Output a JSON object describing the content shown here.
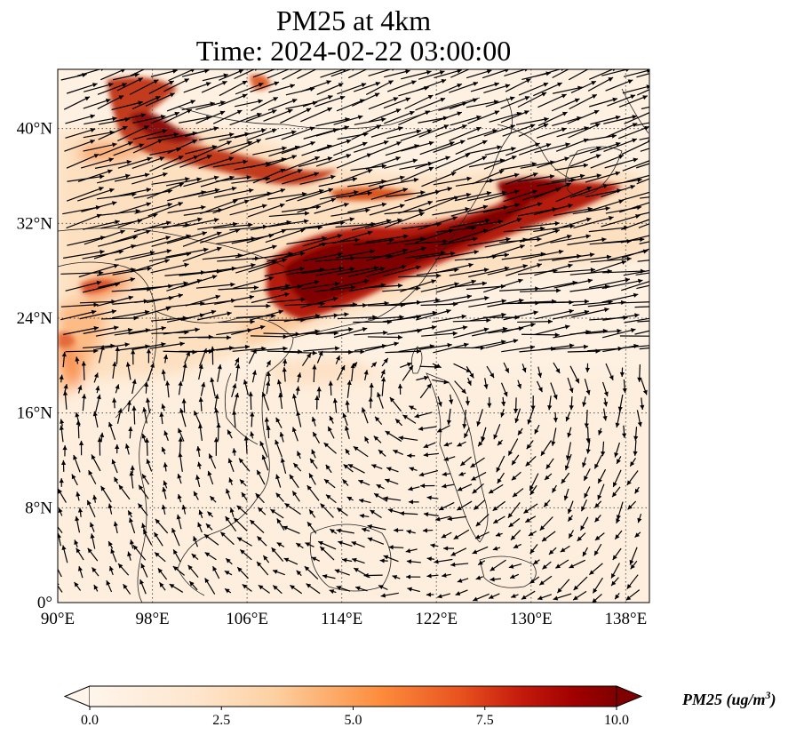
{
  "title": {
    "line1": "PM25 at 4km",
    "line2": "Time: 2024-02-22 03:00:00"
  },
  "map": {
    "lon_range": [
      90,
      140
    ],
    "lat_range": [
      0,
      45
    ],
    "lon_ticks": [
      {
        "value": 90,
        "label": "90°E"
      },
      {
        "value": 98,
        "label": "98°E"
      },
      {
        "value": 106,
        "label": "106°E"
      },
      {
        "value": 114,
        "label": "114°E"
      },
      {
        "value": 122,
        "label": "122°E"
      },
      {
        "value": 130,
        "label": "130°E"
      },
      {
        "value": 138,
        "label": "138°E"
      }
    ],
    "lat_ticks": [
      {
        "value": 0,
        "label": "0°"
      },
      {
        "value": 8,
        "label": "8°N"
      },
      {
        "value": 16,
        "label": "16°N"
      },
      {
        "value": 24,
        "label": "24°N"
      },
      {
        "value": 32,
        "label": "32°N"
      },
      {
        "value": 40,
        "label": "40°N"
      }
    ],
    "gridlines": true
  },
  "colorbar": {
    "min": 0,
    "max": 10,
    "ticks": [
      {
        "value": 0,
        "label": "0.0"
      },
      {
        "value": 2.5,
        "label": "2.5"
      },
      {
        "value": 5,
        "label": "5.0"
      },
      {
        "value": 7.5,
        "label": "7.5"
      },
      {
        "value": 10,
        "label": "10.0"
      }
    ],
    "variable": "PM25",
    "unit_base": "ug/m",
    "unit_exp": "3",
    "colormap": [
      "#fff5eb",
      "#fdd0a2",
      "#fd8d3c",
      "#d94801",
      "#a50f15",
      "#7f0000"
    ]
  }
}
